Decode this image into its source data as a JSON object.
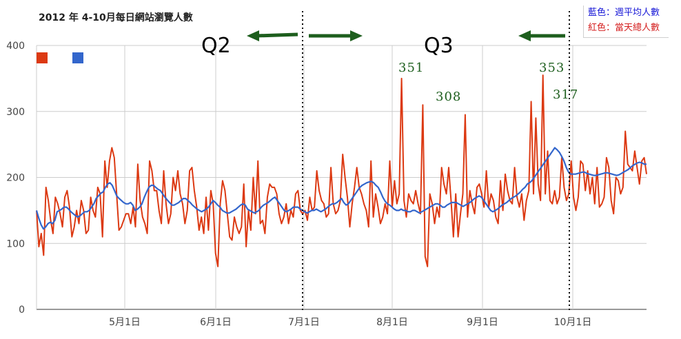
{
  "chart_data": {
    "type": "line",
    "title": "2012 年 4-10月每日網站瀏覽人數",
    "ylim": [
      0,
      400
    ],
    "y_ticks": [
      "0",
      "100",
      "200",
      "300",
      "400"
    ],
    "x_ticks": [
      "5月1日",
      "6月1日",
      "7月1日",
      "8月1日",
      "9月1日",
      "10月1日"
    ],
    "legend_text": [
      "藍色：週平均人數",
      "紅色：當天總人數"
    ],
    "colors": {
      "daily": "#dc3912",
      "weekly": "#3366cc",
      "annotation": "#1d5e1d"
    },
    "series": [
      {
        "name": "當天總人數",
        "color": "#dc3912",
        "values": [
          150,
          95,
          115,
          82,
          185,
          165,
          135,
          115,
          170,
          160,
          145,
          125,
          170,
          180,
          155,
          110,
          125,
          150,
          130,
          165,
          150,
          115,
          120,
          170,
          150,
          140,
          185,
          175,
          110,
          225,
          185,
          225,
          245,
          230,
          175,
          120,
          125,
          135,
          145,
          145,
          130,
          155,
          125,
          220,
          165,
          140,
          130,
          115,
          225,
          210,
          180,
          180,
          150,
          130,
          210,
          160,
          130,
          145,
          200,
          180,
          210,
          175,
          160,
          130,
          150,
          210,
          215,
          180,
          155,
          120,
          140,
          115,
          170,
          120,
          180,
          160,
          85,
          65,
          160,
          195,
          180,
          145,
          110,
          105,
          140,
          125,
          115,
          125,
          190,
          95,
          150,
          120,
          200,
          145,
          225,
          130,
          135,
          115,
          170,
          190,
          185,
          185,
          175,
          145,
          130,
          140,
          160,
          130,
          150,
          140,
          175,
          180,
          150,
          145,
          150,
          135,
          170,
          150,
          155,
          210,
          180,
          165,
          160,
          140,
          145,
          215,
          160,
          145,
          150,
          165,
          235,
          200,
          170,
          125,
          160,
          185,
          215,
          185,
          175,
          160,
          150,
          125,
          225,
          140,
          175,
          155,
          130,
          140,
          160,
          145,
          225,
          155,
          195,
          160,
          175,
          350,
          165,
          140,
          175,
          165,
          160,
          180,
          160,
          145,
          310,
          80,
          65,
          175,
          160,
          130,
          155,
          140,
          215,
          190,
          175,
          215,
          165,
          110,
          175,
          110,
          145,
          175,
          295,
          140,
          180,
          160,
          145,
          185,
          190,
          175,
          155,
          210,
          155,
          175,
          165,
          140,
          130,
          195,
          150,
          205,
          180,
          165,
          160,
          215,
          170,
          155,
          175,
          135,
          165,
          180,
          315,
          175,
          290,
          190,
          165,
          355,
          175,
          240,
          165,
          160,
          180,
          160,
          170,
          230,
          185,
          165,
          175,
          225,
          170,
          150,
          170,
          225,
          220,
          180,
          210,
          175,
          200,
          160,
          215,
          155,
          160,
          170,
          230,
          215,
          165,
          145,
          200,
          195,
          175,
          185,
          270,
          220,
          215,
          210,
          240,
          215,
          190,
          225,
          230,
          205
        ]
      },
      {
        "name": "週平均人數",
        "color": "#3366cc",
        "values": [
          150,
          138,
          128,
          122,
          125,
          130,
          132,
          130,
          135,
          148,
          150,
          152,
          155,
          155,
          152,
          148,
          145,
          142,
          140,
          142,
          145,
          148,
          148,
          150,
          155,
          160,
          168,
          172,
          176,
          178,
          185,
          190,
          192,
          188,
          180,
          172,
          168,
          165,
          162,
          160,
          160,
          162,
          158,
          150,
          152,
          155,
          160,
          170,
          178,
          185,
          188,
          188,
          185,
          182,
          180,
          175,
          170,
          166,
          162,
          158,
          158,
          160,
          162,
          165,
          168,
          168,
          165,
          162,
          158,
          155,
          152,
          150,
          148,
          150,
          152,
          155,
          160,
          165,
          162,
          158,
          155,
          150,
          148,
          146,
          146,
          148,
          150,
          152,
          155,
          158,
          160,
          158,
          152,
          150,
          148,
          146,
          148,
          150,
          155,
          158,
          160,
          162,
          165,
          168,
          170,
          165,
          160,
          155,
          150,
          148,
          150,
          152,
          155,
          155,
          155,
          152,
          150,
          148,
          146,
          148,
          150,
          150,
          152,
          150,
          148,
          150,
          152,
          155,
          158,
          160,
          160,
          162,
          165,
          168,
          162,
          158,
          160,
          165,
          170,
          175,
          180,
          185,
          188,
          190,
          192,
          193,
          194,
          192,
          188,
          185,
          178,
          170,
          164,
          160,
          158,
          155,
          152,
          150,
          150,
          152,
          150,
          150,
          148,
          148,
          150,
          150,
          148,
          146,
          148,
          150,
          152,
          154,
          156,
          158,
          160,
          160,
          158,
          155,
          155,
          158,
          160,
          162,
          162,
          162,
          160,
          158,
          156,
          158,
          160,
          162,
          165,
          168,
          170,
          172,
          170,
          165,
          160,
          155,
          150,
          148,
          150,
          152,
          155,
          158,
          160,
          162,
          165,
          168,
          170,
          172,
          175,
          178,
          182,
          185,
          190,
          192,
          195,
          200,
          205,
          210,
          215,
          220,
          225,
          230,
          235,
          240,
          245,
          242,
          238,
          232,
          225,
          215,
          208,
          205,
          205,
          205,
          206,
          207,
          208,
          208,
          206,
          205,
          204,
          203,
          203,
          204,
          205,
          206,
          207,
          207,
          206,
          205,
          204,
          203,
          204,
          206,
          208,
          210,
          212,
          215,
          218,
          220,
          222,
          223,
          222,
          220,
          220
        ]
      }
    ],
    "annotations": {
      "quarters": [
        "Q2",
        "Q3"
      ],
      "peaks": [
        "351",
        "308",
        "353",
        "317"
      ]
    }
  }
}
